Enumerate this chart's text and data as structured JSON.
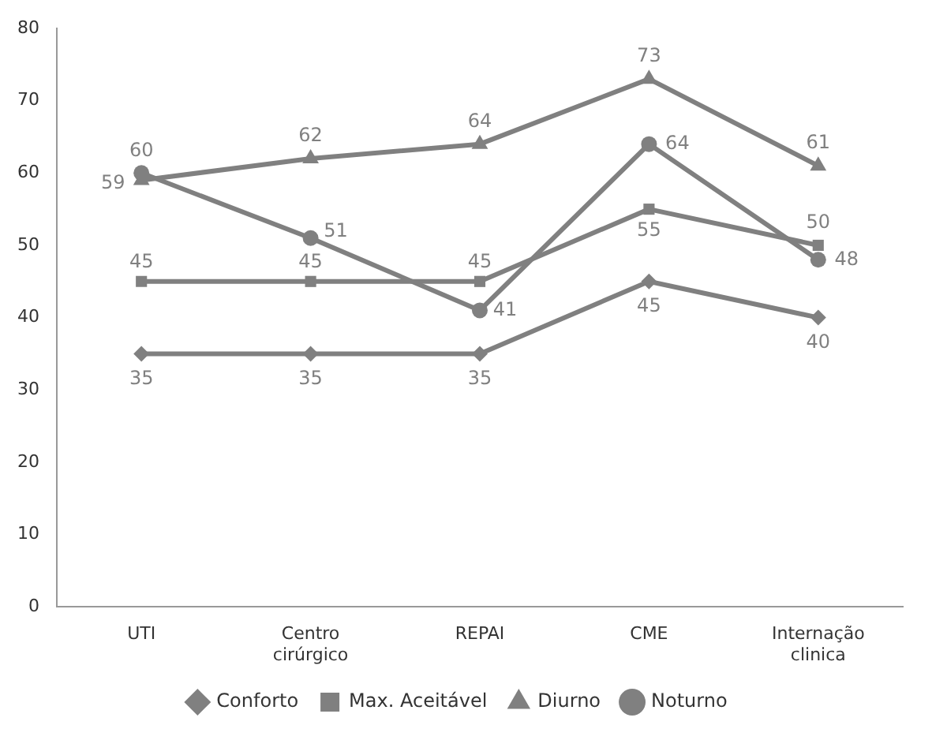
{
  "chart_data": {
    "type": "line",
    "categories": [
      "UTI",
      "Centro cirúrgico",
      "REPAI",
      "CME",
      "Internação clinica"
    ],
    "series": [
      {
        "name": "Conforto",
        "color": "#808080",
        "marker": "diamond",
        "values": [
          35,
          35,
          35,
          45,
          40
        ]
      },
      {
        "name": "Max. Aceitável",
        "color": "#808080",
        "marker": "square",
        "values": [
          45,
          45,
          45,
          55,
          50
        ]
      },
      {
        "name": "Diurno",
        "color": "#808080",
        "marker": "triangle",
        "values": [
          59,
          62,
          64,
          73,
          61
        ]
      },
      {
        "name": "Noturno",
        "color": "#808080",
        "marker": "circle",
        "values": [
          60,
          51,
          41,
          64,
          48
        ]
      }
    ],
    "ylim": [
      0,
      80
    ],
    "yticks": [
      0,
      10,
      20,
      30,
      40,
      50,
      60,
      70,
      80
    ],
    "grid": false,
    "legend": "bottom",
    "data_labels": true,
    "line_style": "solid"
  }
}
